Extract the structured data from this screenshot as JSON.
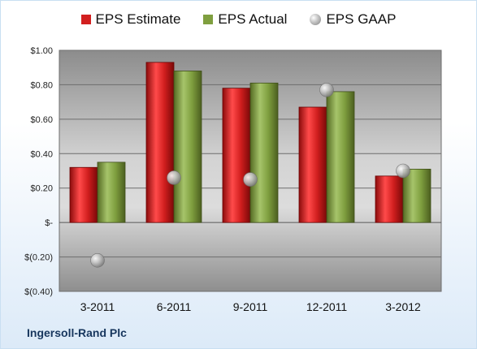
{
  "chart_data": {
    "type": "bar",
    "title": "",
    "xlabel": "",
    "ylabel": "",
    "categories": [
      "3-2011",
      "6-2011",
      "9-2011",
      "12-2011",
      "3-2012"
    ],
    "series": [
      {
        "name": "EPS Estimate",
        "kind": "bar",
        "color": "#d21f1f",
        "values": [
          0.32,
          0.93,
          0.78,
          0.67,
          0.27
        ]
      },
      {
        "name": "EPS Actual",
        "kind": "bar",
        "color": "#7f9f3f",
        "values": [
          0.35,
          0.88,
          0.81,
          0.76,
          0.31
        ]
      },
      {
        "name": "EPS GAAP",
        "kind": "marker",
        "color": "#a6a6a6",
        "values": [
          -0.22,
          0.26,
          0.25,
          0.77,
          0.3
        ]
      }
    ],
    "ylim": [
      -0.4,
      1.0
    ],
    "yticks": [
      1.0,
      0.8,
      0.6,
      0.4,
      0.2,
      0,
      -0.2,
      -0.4
    ],
    "ytick_labels": [
      "$1.00",
      "$0.80",
      "$0.60",
      "$0.40",
      "$0.20",
      "$-",
      "$(0.20)",
      "$(0.40)"
    ],
    "grid": true,
    "legend_position": "top"
  },
  "footer": {
    "company": "Ingersoll-Rand Plc"
  }
}
